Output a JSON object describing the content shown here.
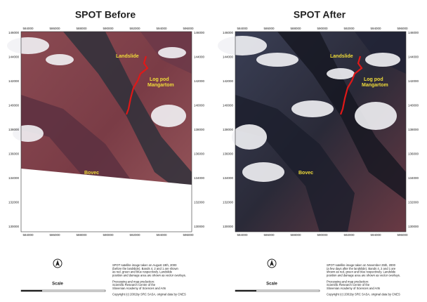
{
  "panels": [
    {
      "title": "SPOT Before",
      "xticks": [
        584000,
        586000,
        588000,
        590000,
        592000,
        594000,
        596000
      ],
      "yticks": [
        146000,
        144000,
        142000,
        140000,
        138000,
        136000,
        134000,
        132000,
        130000
      ],
      "places": [
        "Landslide",
        "Log pod",
        "Mangartom",
        "Bovec"
      ],
      "scale": "Scale",
      "caption": [
        "SPOT satellite image taken on August 19th, 2000",
        "(before the landslide). Bands 4, 2 and 1 are shown",
        "as red, green and blue respectively. Landslide",
        "position and damage area are shown as vector overlays.",
        "Processing and map production:",
        "Scientific Research Centre of the",
        "Slovenian Academy of Sciences and Arts",
        "Copyright (c) 2001by SRC SASA, original data by CNES"
      ]
    },
    {
      "title": "SPOT After",
      "xticks": [
        584000,
        586000,
        588000,
        590000,
        592000,
        594000,
        596000
      ],
      "yticks": [
        146000,
        144000,
        142000,
        140000,
        138000,
        136000,
        134000,
        132000,
        130000
      ],
      "places": [
        "Landslide",
        "Log pod",
        "Mangartom",
        "Bovec"
      ],
      "scale": "Scale",
      "caption": [
        "SPOT satellite image taken on November 25th, 2000",
        "(a few days after the landslide). Bands 4, 2 and 1 are",
        "shown as red, green and blue respectively. Landslide",
        "position and damage area are shown as vector overlays.",
        "Processing and map production:",
        "Scientific Research Centre of the",
        "Slovenian Academy of Sciences and Arts",
        "Copyright (c) 2001by SRC SASA, original data by CNES"
      ]
    }
  ]
}
